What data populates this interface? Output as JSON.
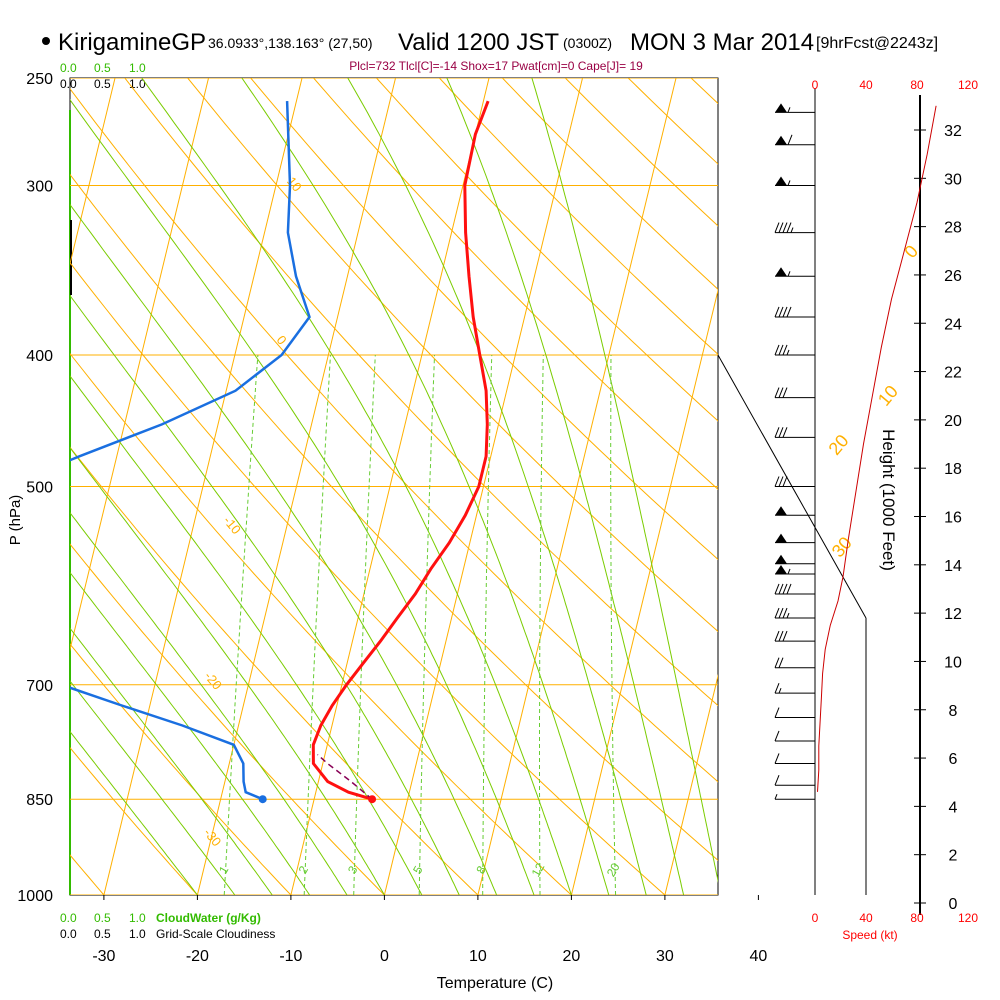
{
  "header": {
    "station": "KirigamineGP",
    "coords": "36.0933°,138.163° (27,50)",
    "valid": "Valid 1200 JST",
    "zulu": "(0300Z)",
    "date": "MON 3 Mar 2014",
    "forecast": "[9hrFcst@2243z]",
    "indices": "Plcl=732 Tlcl[C]=-14 Shox=17 Pwat[cm]=0 Cape[J]= 19"
  },
  "colors": {
    "temperature": "#ff1010",
    "dewpoint": "#1a6fe0",
    "parcel": "#880055",
    "isotherm": "#ffb000",
    "dry_adiabat": "#ffb000",
    "moist_adiabat": "#7acc00",
    "mixing_ratio": "#66cc33",
    "cloud_green": "#33bb00",
    "speed_red": "#ff0000",
    "index_text": "#990044"
  },
  "chart_data": {
    "type": "line",
    "title": "",
    "xlabel": "Temperature (C)",
    "ylabel": "P (hPa)",
    "right_label": "Height (1000 Feet)",
    "speed_label": "Speed (kt)",
    "xlim": [
      -35,
      45
    ],
    "ylim": [
      1000,
      250
    ],
    "pressure_ticks": [
      "250",
      "300",
      "400",
      "500",
      "700",
      "850",
      "1000"
    ],
    "pressure_tick_values": [
      250,
      300,
      400,
      500,
      700,
      850,
      1000
    ],
    "temp_ticks": [
      "-30",
      "-20",
      "-10",
      "0",
      "10",
      "20",
      "30",
      "40"
    ],
    "temp_tick_values": [
      -30,
      -20,
      -10,
      0,
      10,
      20,
      30,
      40
    ],
    "height_ticks": [
      "0",
      "2",
      "4",
      "6",
      "8",
      "10",
      "12",
      "14",
      "16",
      "18",
      "20",
      "22",
      "24",
      "26",
      "28",
      "30",
      "32"
    ],
    "height_tick_values": [
      0,
      2,
      4,
      6,
      8,
      10,
      12,
      14,
      16,
      18,
      20,
      22,
      24,
      26,
      28,
      30,
      32
    ],
    "speed_ticks": [
      "0",
      "40",
      "80",
      "120"
    ],
    "speed_tick_values": [
      0,
      40,
      80,
      120
    ],
    "cloud_scale": [
      "0.0",
      "0.5",
      "1.0"
    ],
    "cloud_water_label": "CloudWater (g/Kg)",
    "cloudiness_label": "Grid-Scale Cloudiness",
    "mixing_ratio_labels": [
      "1",
      "2",
      "3",
      "5",
      "8",
      "12",
      "20"
    ],
    "mixing_ratio_values": [
      1,
      2,
      3,
      5,
      8,
      12,
      20
    ],
    "isotherm_labels": [
      {
        "text": "0",
        "t": 40,
        "p": 340
      },
      {
        "text": "10",
        "t": 41,
        "p": 437
      },
      {
        "text": "20",
        "t": 37,
        "p": 475
      },
      {
        "text": "30",
        "t": 40,
        "p": 565
      }
    ],
    "dry_adiabat_labels": [
      {
        "text": "10",
        "t": -29,
        "p": 298
      },
      {
        "text": "0",
        "t": -26,
        "p": 390
      },
      {
        "text": "-10",
        "t": -27,
        "p": 530
      },
      {
        "text": "-20",
        "t": -25,
        "p": 690
      },
      {
        "text": "-30",
        "t": -21,
        "p": 900
      }
    ],
    "series": [
      {
        "name": "",
        "values": [
          {
            "p": 260,
            "t": -9.5
          },
          {
            "p": 275,
            "t": -10.0
          },
          {
            "p": 300,
            "t": -9.8
          },
          {
            "p": 325,
            "t": -8.5
          },
          {
            "p": 350,
            "t": -7.0
          },
          {
            "p": 375,
            "t": -5.5
          },
          {
            "p": 400,
            "t": -3.8
          },
          {
            "p": 425,
            "t": -2.2
          },
          {
            "p": 450,
            "t": -1.2
          },
          {
            "p": 475,
            "t": -0.5
          },
          {
            "p": 500,
            "t": -0.5
          },
          {
            "p": 525,
            "t": -1.2
          },
          {
            "p": 550,
            "t": -2.2
          },
          {
            "p": 575,
            "t": -3.5
          },
          {
            "p": 600,
            "t": -4.5
          },
          {
            "p": 625,
            "t": -5.8
          },
          {
            "p": 650,
            "t": -7.0
          },
          {
            "p": 675,
            "t": -8.3
          },
          {
            "p": 700,
            "t": -9.5
          },
          {
            "p": 725,
            "t": -10.5
          },
          {
            "p": 750,
            "t": -11.2
          },
          {
            "p": 775,
            "t": -11.5
          },
          {
            "p": 800,
            "t": -11.0
          },
          {
            "p": 825,
            "t": -9.0
          },
          {
            "p": 840,
            "t": -6.5
          },
          {
            "p": 850,
            "t": -3.8
          }
        ]
      },
      {
        "name": "",
        "values": [
          {
            "p": 260,
            "t": -31.0
          },
          {
            "p": 300,
            "t": -28.5
          },
          {
            "p": 325,
            "t": -27.5
          },
          {
            "p": 350,
            "t": -25.5
          },
          {
            "p": 375,
            "t": -23.0
          },
          {
            "p": 400,
            "t": -25.0
          },
          {
            "p": 425,
            "t": -29.0
          },
          {
            "p": 450,
            "t": -36.0
          },
          {
            "p": 475,
            "t": -44.0
          },
          {
            "p": 500,
            "t": -51.0
          },
          {
            "p": 525,
            "t": -57.0
          },
          {
            "p": 550,
            "t": -58.0
          },
          {
            "p": 575,
            "t": -56.0
          },
          {
            "p": 600,
            "t": -54.0
          },
          {
            "p": 625,
            "t": -53.0
          },
          {
            "p": 650,
            "t": -51.5
          },
          {
            "p": 675,
            "t": -47.0
          },
          {
            "p": 700,
            "t": -40.0
          },
          {
            "p": 725,
            "t": -33.0
          },
          {
            "p": 750,
            "t": -26.0
          },
          {
            "p": 775,
            "t": -20.0
          },
          {
            "p": 800,
            "t": -18.5
          },
          {
            "p": 825,
            "t": -18.0
          },
          {
            "p": 840,
            "t": -17.5
          },
          {
            "p": 850,
            "t": -15.5
          }
        ]
      },
      {
        "name": "",
        "values": [
          {
            "p": 850,
            "t": -3.8
          },
          {
            "p": 825,
            "t": -6.5
          },
          {
            "p": 800,
            "t": -9.5
          },
          {
            "p": 788,
            "t": -10.8
          }
        ]
      }
    ],
    "surface_points": {
      "temperature": -3.8,
      "dewpoint": -15.5,
      "p": 850
    },
    "wind_profile": [
      {
        "height_kft": 4.6,
        "speed_kt": 2
      },
      {
        "height_kft": 5.5,
        "speed_kt": 3
      },
      {
        "height_kft": 6.5,
        "speed_kt": 3
      },
      {
        "height_kft": 7.5,
        "speed_kt": 4
      },
      {
        "height_kft": 8.5,
        "speed_kt": 5
      },
      {
        "height_kft": 9.5,
        "speed_kt": 6
      },
      {
        "height_kft": 10.5,
        "speed_kt": 8
      },
      {
        "height_kft": 11.5,
        "speed_kt": 12
      },
      {
        "height_kft": 12.5,
        "speed_kt": 18
      },
      {
        "height_kft": 13.5,
        "speed_kt": 22
      },
      {
        "height_kft": 15.0,
        "speed_kt": 26
      },
      {
        "height_kft": 17.0,
        "speed_kt": 32
      },
      {
        "height_kft": 19.0,
        "speed_kt": 38
      },
      {
        "height_kft": 21.0,
        "speed_kt": 45
      },
      {
        "height_kft": 23.0,
        "speed_kt": 52
      },
      {
        "height_kft": 25.0,
        "speed_kt": 60
      },
      {
        "height_kft": 27.0,
        "speed_kt": 70
      },
      {
        "height_kft": 29.0,
        "speed_kt": 80
      },
      {
        "height_kft": 31.0,
        "speed_kt": 88
      },
      {
        "height_kft": 33.0,
        "speed_kt": 95
      }
    ],
    "wind_barbs": [
      {
        "p": 265,
        "speed": 55
      },
      {
        "p": 280,
        "speed": 60
      },
      {
        "p": 300,
        "speed": 55
      },
      {
        "p": 325,
        "speed": 45
      },
      {
        "p": 350,
        "speed": 55
      },
      {
        "p": 375,
        "speed": 40
      },
      {
        "p": 400,
        "speed": 35
      },
      {
        "p": 430,
        "speed": 30
      },
      {
        "p": 460,
        "speed": 30
      },
      {
        "p": 500,
        "speed": 30
      },
      {
        "p": 525,
        "speed": 50
      },
      {
        "p": 550,
        "speed": 50
      },
      {
        "p": 570,
        "speed": 50
      },
      {
        "p": 580,
        "speed": 55
      },
      {
        "p": 600,
        "speed": 40
      },
      {
        "p": 625,
        "speed": 35
      },
      {
        "p": 650,
        "speed": 30
      },
      {
        "p": 680,
        "speed": 20
      },
      {
        "p": 710,
        "speed": 15
      },
      {
        "p": 740,
        "speed": 10
      },
      {
        "p": 770,
        "speed": 10
      },
      {
        "p": 800,
        "speed": 10
      },
      {
        "p": 830,
        "speed": 10
      },
      {
        "p": 850,
        "speed": 5
      }
    ],
    "grid": true
  }
}
